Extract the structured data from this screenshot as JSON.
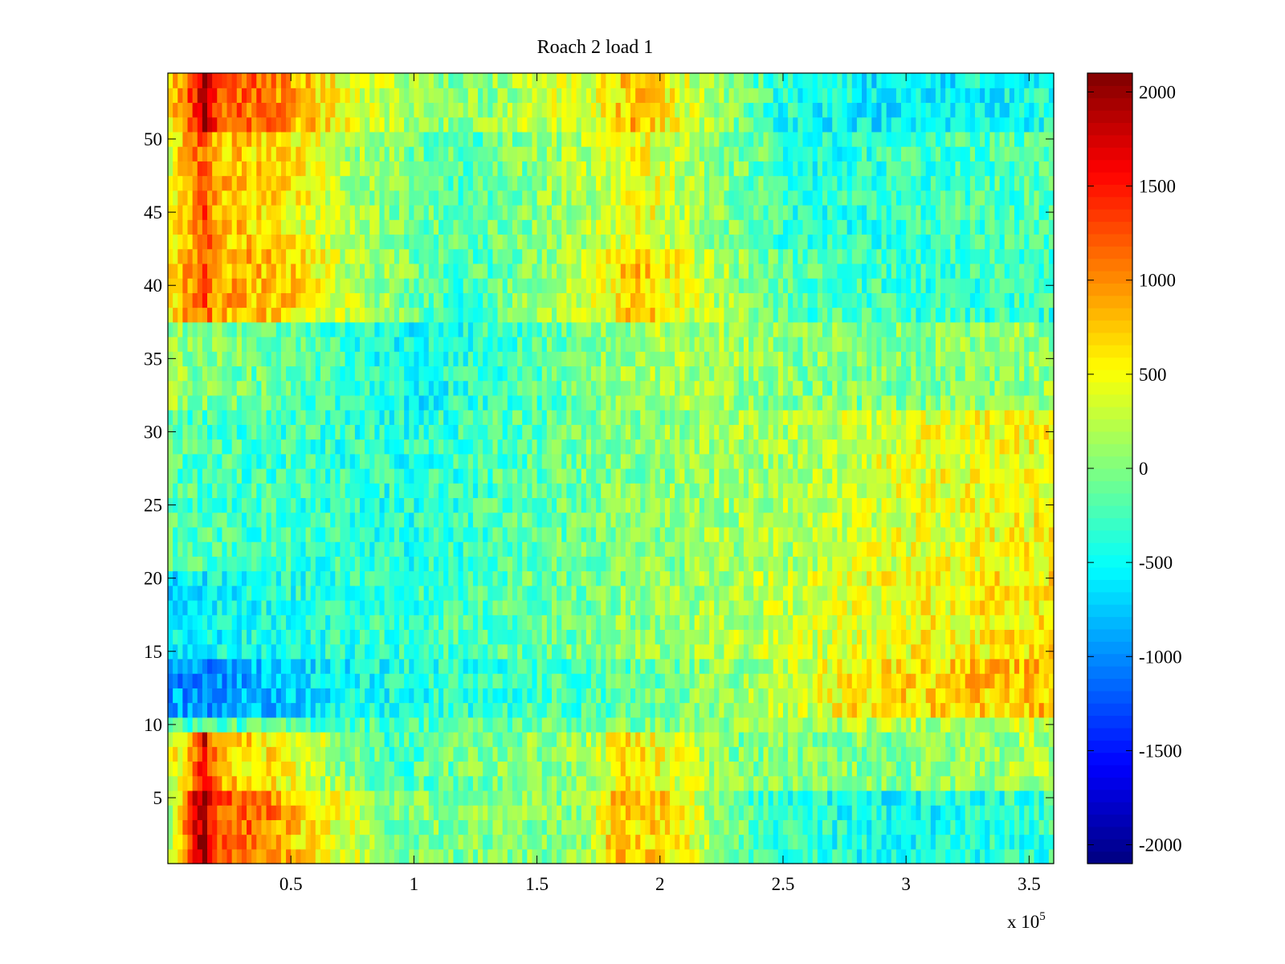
{
  "chart_data": {
    "type": "heatmap",
    "title": "Roach 2 load 1",
    "xlabel": "",
    "ylabel": "",
    "x_range": [
      0,
      360000
    ],
    "y_range": [
      0.5,
      54.5
    ],
    "n_rows": 54,
    "x_ticks": [
      50000,
      100000,
      150000,
      200000,
      250000,
      300000,
      350000
    ],
    "x_tick_labels": [
      "0.5",
      "1",
      "1.5",
      "2",
      "2.5",
      "3",
      "3.5"
    ],
    "x_exponent_label": "x 10",
    "x_exponent_power": "5",
    "y_ticks": [
      5,
      10,
      15,
      20,
      25,
      30,
      35,
      40,
      45,
      50
    ],
    "y_tick_labels": [
      "5",
      "10",
      "15",
      "20",
      "25",
      "30",
      "35",
      "40",
      "45",
      "50"
    ],
    "colorbar": {
      "colormap": "jet",
      "range": [
        -2100,
        2100
      ],
      "ticks": [
        2000,
        1500,
        1000,
        500,
        0,
        -500,
        -1000,
        -1500,
        -2000
      ],
      "tick_labels": [
        "2000",
        "1500",
        "1000",
        "500",
        "0",
        "-500",
        "-1000",
        "-1500",
        "-2000"
      ]
    },
    "value_bands": [
      {
        "rows": [
          1,
          5
        ],
        "profile": [
          [
            0,
            -100
          ],
          [
            10000,
            1500
          ],
          [
            15000,
            2000
          ],
          [
            20000,
            1200
          ],
          [
            40000,
            1100
          ],
          [
            60000,
            500
          ],
          [
            80000,
            300
          ],
          [
            90000,
            0
          ],
          [
            170000,
            0
          ],
          [
            180000,
            700
          ],
          [
            200000,
            700
          ],
          [
            220000,
            200
          ],
          [
            240000,
            -300
          ],
          [
            300000,
            -500
          ],
          [
            360000,
            -300
          ]
        ]
      },
      {
        "rows": [
          6,
          9
        ],
        "profile": [
          [
            0,
            300
          ],
          [
            10000,
            900
          ],
          [
            15000,
            1700
          ],
          [
            20000,
            800
          ],
          [
            40000,
            600
          ],
          [
            60000,
            300
          ],
          [
            90000,
            -300
          ],
          [
            110000,
            -100
          ],
          [
            170000,
            100
          ],
          [
            185000,
            600
          ],
          [
            200000,
            500
          ],
          [
            230000,
            0
          ],
          [
            300000,
            0
          ],
          [
            360000,
            200
          ]
        ]
      },
      {
        "rows": [
          10,
          10
        ],
        "profile": [
          [
            0,
            -200
          ],
          [
            100000,
            -200
          ],
          [
            200000,
            0
          ],
          [
            300000,
            200
          ],
          [
            360000,
            300
          ]
        ]
      },
      {
        "rows": [
          11,
          14
        ],
        "profile": [
          [
            0,
            -900
          ],
          [
            15000,
            -1000
          ],
          [
            60000,
            -600
          ],
          [
            100000,
            -400
          ],
          [
            180000,
            -200
          ],
          [
            250000,
            200
          ],
          [
            280000,
            600
          ],
          [
            320000,
            700
          ],
          [
            360000,
            800
          ]
        ]
      },
      {
        "rows": [
          15,
          20
        ],
        "profile": [
          [
            0,
            -600
          ],
          [
            50000,
            -400
          ],
          [
            100000,
            -300
          ],
          [
            180000,
            0
          ],
          [
            260000,
            300
          ],
          [
            300000,
            500
          ],
          [
            360000,
            600
          ]
        ]
      },
      {
        "rows": [
          21,
          31
        ],
        "profile": [
          [
            0,
            -200
          ],
          [
            60000,
            -300
          ],
          [
            100000,
            -400
          ],
          [
            180000,
            0
          ],
          [
            260000,
            200
          ],
          [
            300000,
            400
          ],
          [
            360000,
            500
          ]
        ]
      },
      {
        "rows": [
          32,
          37
        ],
        "profile": [
          [
            0,
            100
          ],
          [
            60000,
            -200
          ],
          [
            100000,
            -500
          ],
          [
            150000,
            -200
          ],
          [
            200000,
            200
          ],
          [
            260000,
            0
          ],
          [
            300000,
            0
          ],
          [
            360000,
            100
          ]
        ]
      },
      {
        "rows": [
          38,
          42
        ],
        "profile": [
          [
            0,
            500
          ],
          [
            10000,
            1000
          ],
          [
            15000,
            1200
          ],
          [
            20000,
            900
          ],
          [
            50000,
            700
          ],
          [
            70000,
            300
          ],
          [
            120000,
            -300
          ],
          [
            170000,
            300
          ],
          [
            190000,
            800
          ],
          [
            210000,
            400
          ],
          [
            250000,
            -200
          ],
          [
            300000,
            -300
          ],
          [
            360000,
            -300
          ]
        ]
      },
      {
        "rows": [
          43,
          50
        ],
        "profile": [
          [
            0,
            400
          ],
          [
            10000,
            900
          ],
          [
            15000,
            1300
          ],
          [
            20000,
            800
          ],
          [
            50000,
            600
          ],
          [
            70000,
            200
          ],
          [
            120000,
            -200
          ],
          [
            170000,
            200
          ],
          [
            190000,
            500
          ],
          [
            220000,
            100
          ],
          [
            260000,
            -400
          ],
          [
            300000,
            -300
          ],
          [
            360000,
            -200
          ]
        ]
      },
      {
        "rows": [
          51,
          54
        ],
        "profile": [
          [
            0,
            600
          ],
          [
            10000,
            1300
          ],
          [
            15000,
            2000
          ],
          [
            20000,
            1200
          ],
          [
            40000,
            1100
          ],
          [
            60000,
            700
          ],
          [
            80000,
            300
          ],
          [
            120000,
            0
          ],
          [
            170000,
            400
          ],
          [
            190000,
            800
          ],
          [
            210000,
            400
          ],
          [
            250000,
            -400
          ],
          [
            300000,
            -600
          ],
          [
            360000,
            -400
          ]
        ]
      }
    ]
  }
}
